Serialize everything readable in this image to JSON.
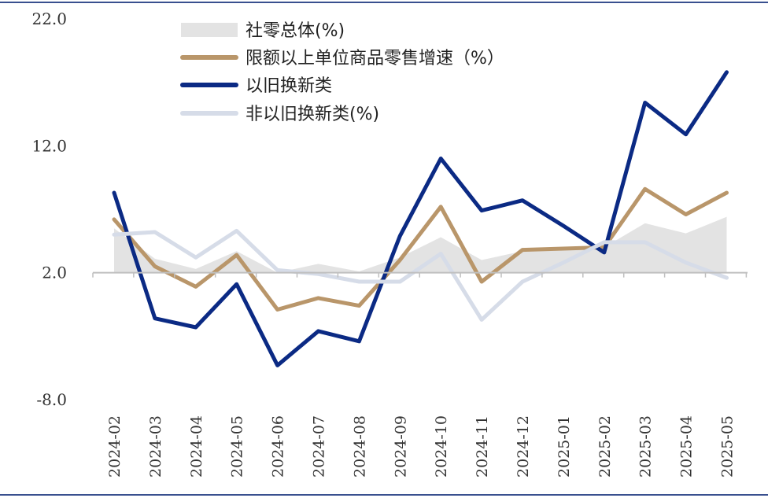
{
  "chart_data": {
    "type": "line",
    "title": "",
    "xlabel": "",
    "ylabel": "",
    "ylim": [
      -8,
      22
    ],
    "yticks": [
      "22.0",
      "12.0",
      "2.0",
      "-8.0"
    ],
    "ytick_values": [
      22,
      12,
      2,
      -8
    ],
    "categories": [
      "2024-02",
      "2024-03",
      "2024-04",
      "2024-05",
      "2024-06",
      "2024-07",
      "2024-08",
      "2024-09",
      "2024-10",
      "2024-11",
      "2024-12",
      "2025-01",
      "2025-02",
      "2025-03",
      "2025-04",
      "2025-05"
    ],
    "legend_position": "top",
    "series": [
      {
        "name": "社零总体(%)",
        "kind": "area",
        "color": "#e3e3e3",
        "values": [
          5.5,
          3.1,
          2.3,
          3.7,
          2.0,
          2.7,
          2.1,
          3.2,
          4.8,
          3.0,
          3.7,
          4.0,
          4.0,
          5.9,
          5.1,
          6.4
        ]
      },
      {
        "name": "限额以上单位商品零售增速（%）",
        "kind": "line",
        "color": "#b9966a",
        "values": [
          6.2,
          2.5,
          0.9,
          3.4,
          -0.9,
          0.0,
          -0.6,
          3.0,
          7.2,
          1.3,
          3.8,
          3.9,
          4.0,
          8.6,
          6.6,
          8.3
        ]
      },
      {
        "name": "以旧换新类",
        "kind": "line",
        "color": "#0b2a84",
        "values": [
          8.3,
          -1.6,
          -2.3,
          1.1,
          -5.3,
          -2.6,
          -3.4,
          4.9,
          11.0,
          6.9,
          7.7,
          5.7,
          3.6,
          15.4,
          12.9,
          17.8
        ]
      },
      {
        "name": "非以旧换新类(%)",
        "kind": "line",
        "color": "#d6dce8",
        "values": [
          5.0,
          5.2,
          3.2,
          5.3,
          2.2,
          1.9,
          1.3,
          1.3,
          3.5,
          -1.7,
          1.3,
          2.8,
          4.4,
          4.4,
          2.8,
          1.6
        ]
      }
    ]
  }
}
